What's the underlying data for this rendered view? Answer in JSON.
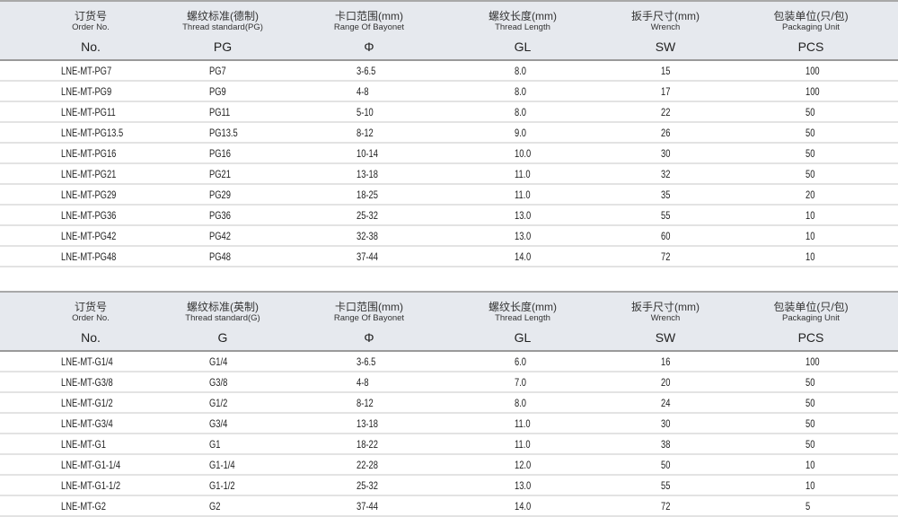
{
  "tables": [
    {
      "headers": [
        {
          "cn": "订货号",
          "en": "Order No.",
          "sym": "No."
        },
        {
          "cn": "螺纹标准(德制)",
          "en": "Thread standard(PG)",
          "sym": "PG"
        },
        {
          "cn": "卡口范围(mm)",
          "en": "Range Of Bayonet",
          "sym": "Φ"
        },
        {
          "cn": "螺纹长度(mm)",
          "en": "Thread Length",
          "sym": "GL"
        },
        {
          "cn": "扳手尺寸(mm)",
          "en": "Wrench",
          "sym": "SW"
        },
        {
          "cn": "包装单位(只/包)",
          "en": "Packaging Unit",
          "sym": "PCS"
        }
      ],
      "rows": [
        [
          "LNE-MT-PG7",
          "PG7",
          "3-6.5",
          "8.0",
          "15",
          "100"
        ],
        [
          "LNE-MT-PG9",
          "PG9",
          "4-8",
          "8.0",
          "17",
          "100"
        ],
        [
          "LNE-MT-PG11",
          "PG11",
          "5-10",
          "8.0",
          "22",
          "50"
        ],
        [
          "LNE-MT-PG13.5",
          "PG13.5",
          "8-12",
          "9.0",
          "26",
          "50"
        ],
        [
          "LNE-MT-PG16",
          "PG16",
          "10-14",
          "10.0",
          "30",
          "50"
        ],
        [
          "LNE-MT-PG21",
          "PG21",
          "13-18",
          "11.0",
          "32",
          "50"
        ],
        [
          "LNE-MT-PG29",
          "PG29",
          "18-25",
          "11.0",
          "35",
          "20"
        ],
        [
          "LNE-MT-PG36",
          "PG36",
          "25-32",
          "13.0",
          "55",
          "10"
        ],
        [
          "LNE-MT-PG42",
          "PG42",
          "32-38",
          "13.0",
          "60",
          "10"
        ],
        [
          "LNE-MT-PG48",
          "PG48",
          "37-44",
          "14.0",
          "72",
          "10"
        ]
      ]
    },
    {
      "headers": [
        {
          "cn": "订货号",
          "en": "Order No.",
          "sym": "No."
        },
        {
          "cn": "螺纹标准(英制)",
          "en": "Thread standard(G)",
          "sym": "G"
        },
        {
          "cn": "卡口范围(mm)",
          "en": "Range Of Bayonet",
          "sym": "Φ"
        },
        {
          "cn": "螺纹长度(mm)",
          "en": "Thread Length",
          "sym": "GL"
        },
        {
          "cn": "扳手尺寸(mm)",
          "en": "Wrench",
          "sym": "SW"
        },
        {
          "cn": "包装单位(只/包)",
          "en": "Packaging Unit",
          "sym": "PCS"
        }
      ],
      "rows": [
        [
          "LNE-MT-G1/4",
          "G1/4",
          "3-6.5",
          "6.0",
          "16",
          "100"
        ],
        [
          "LNE-MT-G3/8",
          "G3/8",
          "4-8",
          "7.0",
          "20",
          "50"
        ],
        [
          "LNE-MT-G1/2",
          "G1/2",
          "8-12",
          "8.0",
          "24",
          "50"
        ],
        [
          "LNE-MT-G3/4",
          "G3/4",
          "13-18",
          "11.0",
          "30",
          "50"
        ],
        [
          "LNE-MT-G1",
          "G1",
          "18-22",
          "11.0",
          "38",
          "50"
        ],
        [
          "LNE-MT-G1-1/4",
          "G1-1/4",
          "22-28",
          "12.0",
          "50",
          "10"
        ],
        [
          "LNE-MT-G1-1/2",
          "G1-1/2",
          "25-32",
          "13.0",
          "55",
          "10"
        ],
        [
          "LNE-MT-G2",
          "G2",
          "37-44",
          "14.0",
          "72",
          "5"
        ]
      ]
    }
  ]
}
